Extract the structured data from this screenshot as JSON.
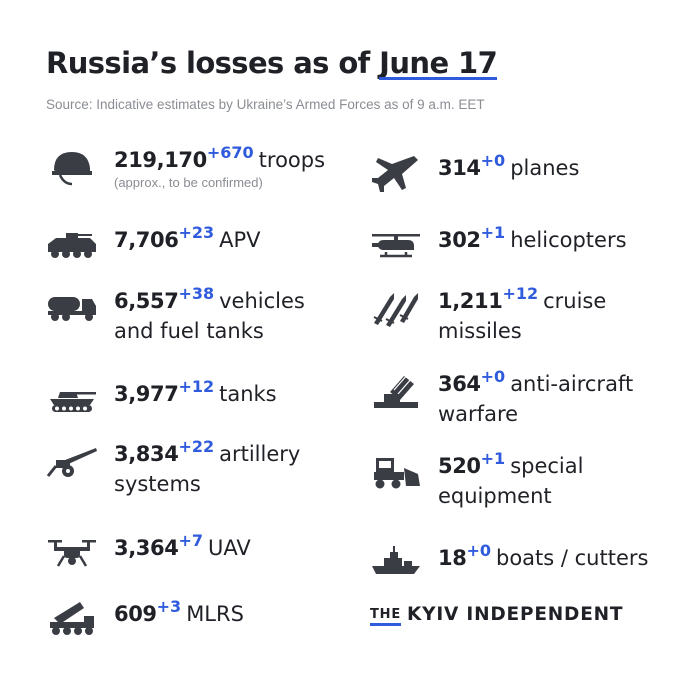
{
  "header": {
    "title_main": "Russia’s losses as of ",
    "title_date": "June 17",
    "source": "Source: Indicative estimates by Ukraine’s Armed Forces as of 9 a.m. EET"
  },
  "left": [
    {
      "icon": "helmet-icon",
      "value": "219,170",
      "delta": "+670",
      "label": "troops",
      "note": "(approx., to be confirmed)"
    },
    {
      "icon": "apv-icon",
      "value": "7,706",
      "delta": "+23",
      "label": "APV"
    },
    {
      "icon": "fuel-truck-icon",
      "value": "6,557",
      "delta": "+38",
      "label": "vehicles",
      "label2": "and fuel tanks"
    },
    {
      "icon": "tank-icon",
      "value": "3,977",
      "delta": "+12",
      "label": "tanks"
    },
    {
      "icon": "artillery-icon",
      "value": "3,834",
      "delta": "+22",
      "label": "artillery",
      "label2": "systems"
    },
    {
      "icon": "drone-icon",
      "value": "3,364",
      "delta": "+7",
      "label": "UAV"
    },
    {
      "icon": "mlrs-icon",
      "value": "609",
      "delta": "+3",
      "label": "MLRS"
    }
  ],
  "right": [
    {
      "icon": "plane-icon",
      "value": "314",
      "delta": "+0",
      "label": "planes"
    },
    {
      "icon": "helicopter-icon",
      "value": "302",
      "delta": "+1",
      "label": "helicopters"
    },
    {
      "icon": "missile-icon",
      "value": "1,211",
      "delta": "+12",
      "label": "cruise",
      "label2": "missiles"
    },
    {
      "icon": "anti-aircraft-icon",
      "value": "364",
      "delta": "+0",
      "label": "anti-aircraft",
      "label2": "warfare"
    },
    {
      "icon": "bulldozer-icon",
      "value": "520",
      "delta": "+1",
      "label": "special",
      "label2": "equipment"
    },
    {
      "icon": "boat-icon",
      "value": "18",
      "delta": "+0",
      "label": "boats / cutters"
    }
  ],
  "brand": {
    "the": "THE",
    "name": "KYIV INDEPENDENT"
  },
  "colors": {
    "accent": "#2f5bdc",
    "text": "#1f2127",
    "muted": "#8a8d93",
    "icon": "#3a3d44"
  }
}
